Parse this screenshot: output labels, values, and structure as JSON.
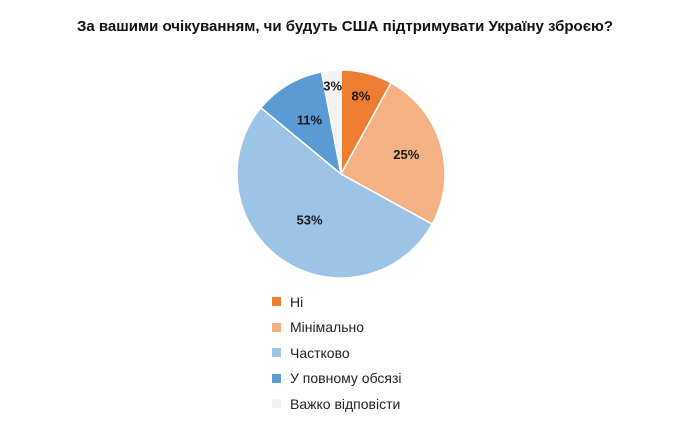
{
  "chart_data": {
    "type": "pie",
    "title": "За вашими очікуванням, чи будуть США підтримувати Україну зброєю?",
    "legend_position": "bottom",
    "slices": [
      {
        "label": "Ні",
        "value": 8,
        "value_label": "8%",
        "color": "#ed7d31"
      },
      {
        "label": "Мінімально",
        "value": 25,
        "value_label": "25%",
        "color": "#f4b183"
      },
      {
        "label": "Частково",
        "value": 53,
        "value_label": "53%",
        "color": "#9dc3e6"
      },
      {
        "label": "У повному обсязі",
        "value": 11,
        "value_label": "11%",
        "color": "#5b9bd5"
      },
      {
        "label": "Важко відповісти",
        "value": 3,
        "value_label": "3%",
        "color": "#f2f2f2"
      }
    ]
  }
}
